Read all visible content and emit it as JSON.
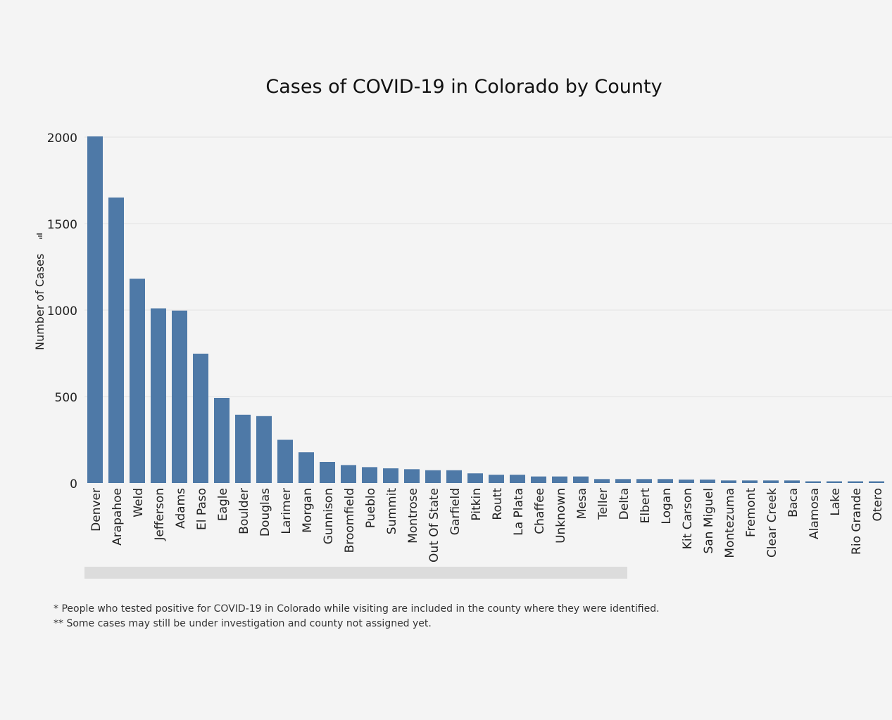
{
  "chart_data": {
    "type": "bar",
    "title": "Cases of COVID-19 in Colorado by County",
    "xlabel": "",
    "ylabel": "Number of Cases",
    "ylim": [
      0,
      2000
    ],
    "yticks": [
      0,
      500,
      1000,
      1500,
      2000
    ],
    "grid": true,
    "bar_color": "#4e79a7",
    "categories": [
      "Denver",
      "Arapahoe",
      "Weld",
      "Jefferson",
      "Adams",
      "El Paso",
      "Eagle",
      "Boulder",
      "Douglas",
      "Larimer",
      "Morgan",
      "Gunnison",
      "Broomfield",
      "Pueblo",
      "Summit",
      "Montrose",
      "Out Of State",
      "Garfield",
      "Pitkin",
      "Routt",
      "La Plata",
      "Chaffee",
      "Unknown",
      "Mesa",
      "Teller",
      "Delta",
      "Elbert",
      "Logan",
      "Kit Carson",
      "San Miguel",
      "Montezuma",
      "Fremont",
      "Clear Creek",
      "Baca",
      "Alamosa",
      "Lake",
      "Rio Grande",
      "Otero"
    ],
    "values": [
      2004,
      1651,
      1181,
      1010,
      997,
      748,
      492,
      395,
      387,
      250,
      178,
      122,
      104,
      92,
      85,
      80,
      74,
      74,
      56,
      48,
      48,
      38,
      38,
      38,
      23,
      23,
      23,
      23,
      20,
      20,
      15,
      15,
      15,
      15,
      10,
      10,
      10,
      10
    ]
  },
  "ui": {
    "sort_icon": "sort-descending-icon",
    "scrollbar": "horizontal-scrollbar"
  },
  "footnotes": [
    "* People who tested positive for COVID-19 in Colorado while visiting are included in the county where they were identified.",
    "** Some cases may still be under investigation and county not assigned yet."
  ]
}
